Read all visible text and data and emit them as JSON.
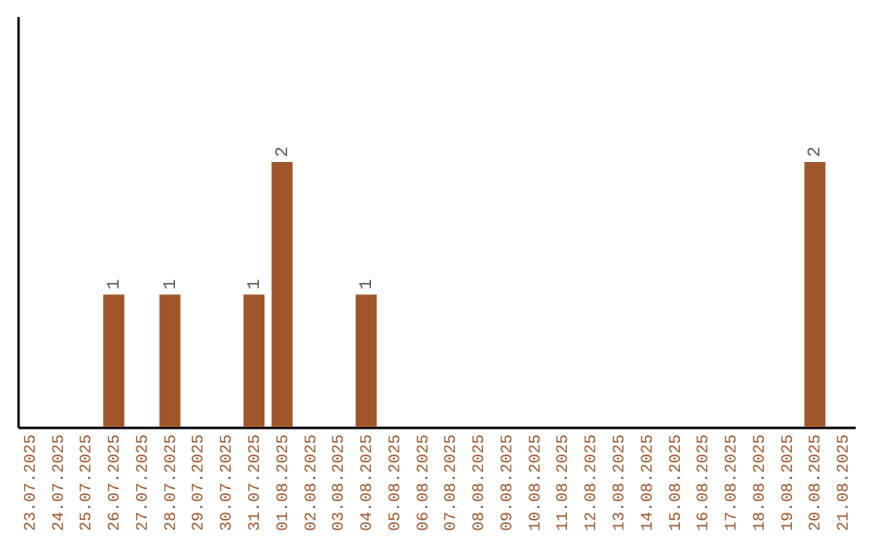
{
  "chart_data": {
    "type": "bar",
    "categories": [
      "23.07.2025",
      "24.07.2025",
      "25.07.2025",
      "26.07.2025",
      "27.07.2025",
      "28.07.2025",
      "29.07.2025",
      "30.07.2025",
      "31.07.2025",
      "01.08.2025",
      "02.08.2025",
      "03.08.2025",
      "04.08.2025",
      "05.08.2025",
      "06.08.2025",
      "07.08.2025",
      "08.08.2025",
      "09.08.2025",
      "10.08.2025",
      "11.08.2025",
      "12.08.2025",
      "13.08.2025",
      "14.08.2025",
      "15.08.2025",
      "16.08.2025",
      "17.08.2025",
      "18.08.2025",
      "19.08.2025",
      "20.08.2025",
      "21.08.2025"
    ],
    "values": [
      0,
      0,
      0,
      1,
      0,
      1,
      0,
      0,
      1,
      2,
      0,
      0,
      1,
      0,
      0,
      0,
      0,
      0,
      0,
      0,
      0,
      0,
      0,
      0,
      0,
      0,
      0,
      0,
      2,
      0
    ],
    "value_labels": [
      null,
      null,
      null,
      "1",
      null,
      "1",
      null,
      null,
      "1",
      "2",
      null,
      null,
      "1",
      null,
      null,
      null,
      null,
      null,
      null,
      null,
      null,
      null,
      null,
      null,
      null,
      null,
      null,
      null,
      "2",
      null
    ],
    "color": "#a0572b",
    "tick_labels": "x",
    "grid": false
  }
}
